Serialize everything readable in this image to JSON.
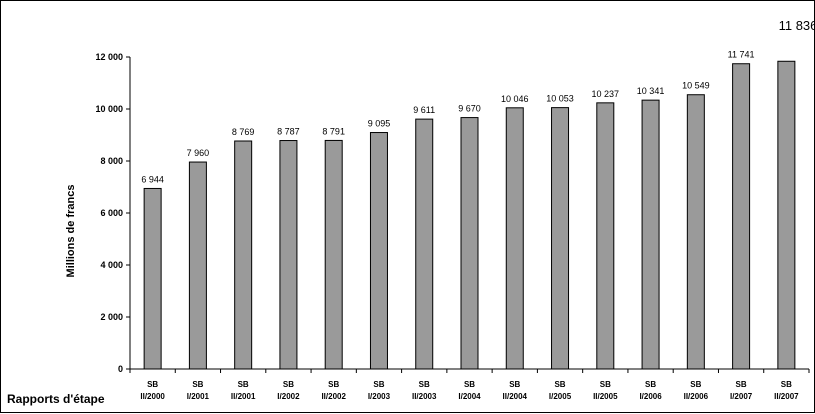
{
  "chart_data": {
    "type": "bar",
    "ylabel": "Millions de francs",
    "xlabel": "Rapports d'étape",
    "ylim": [
      0,
      12000
    ],
    "yticks": [
      0,
      2000,
      4000,
      6000,
      8000,
      10000,
      12000
    ],
    "ytick_labels": [
      "0",
      "2 000",
      "4 000",
      "6 000",
      "8 000",
      "10 000",
      "12 000"
    ],
    "grid": false,
    "bar_color": "#9a9a9a",
    "categories": [
      [
        "SB",
        "II/2000"
      ],
      [
        "SB",
        "I/2001"
      ],
      [
        "SB",
        "II/2001"
      ],
      [
        "SB",
        "I/2002"
      ],
      [
        "SB",
        "II/2002"
      ],
      [
        "SB",
        "I/2003"
      ],
      [
        "SB",
        "II/2003"
      ],
      [
        "SB",
        "I/2004"
      ],
      [
        "SB",
        "II/2004"
      ],
      [
        "SB",
        "I/2005"
      ],
      [
        "SB",
        "II/2005"
      ],
      [
        "SB",
        "I/2006"
      ],
      [
        "SB",
        "II/2006"
      ],
      [
        "SB",
        "I/2007"
      ],
      [
        "SB",
        "II/2007"
      ]
    ],
    "values": [
      6944,
      7960,
      8769,
      8787,
      8791,
      9095,
      9611,
      9670,
      10046,
      10053,
      10237,
      10341,
      10549,
      11741,
      11836
    ],
    "value_labels": [
      "6 944",
      "7 960",
      "8 769",
      "8 787",
      "8 791",
      "9 095",
      "9 611",
      "9 670",
      "10 046",
      "10 053",
      "10 237",
      "10 341",
      "10 549",
      "11 741",
      "11 836"
    ]
  }
}
